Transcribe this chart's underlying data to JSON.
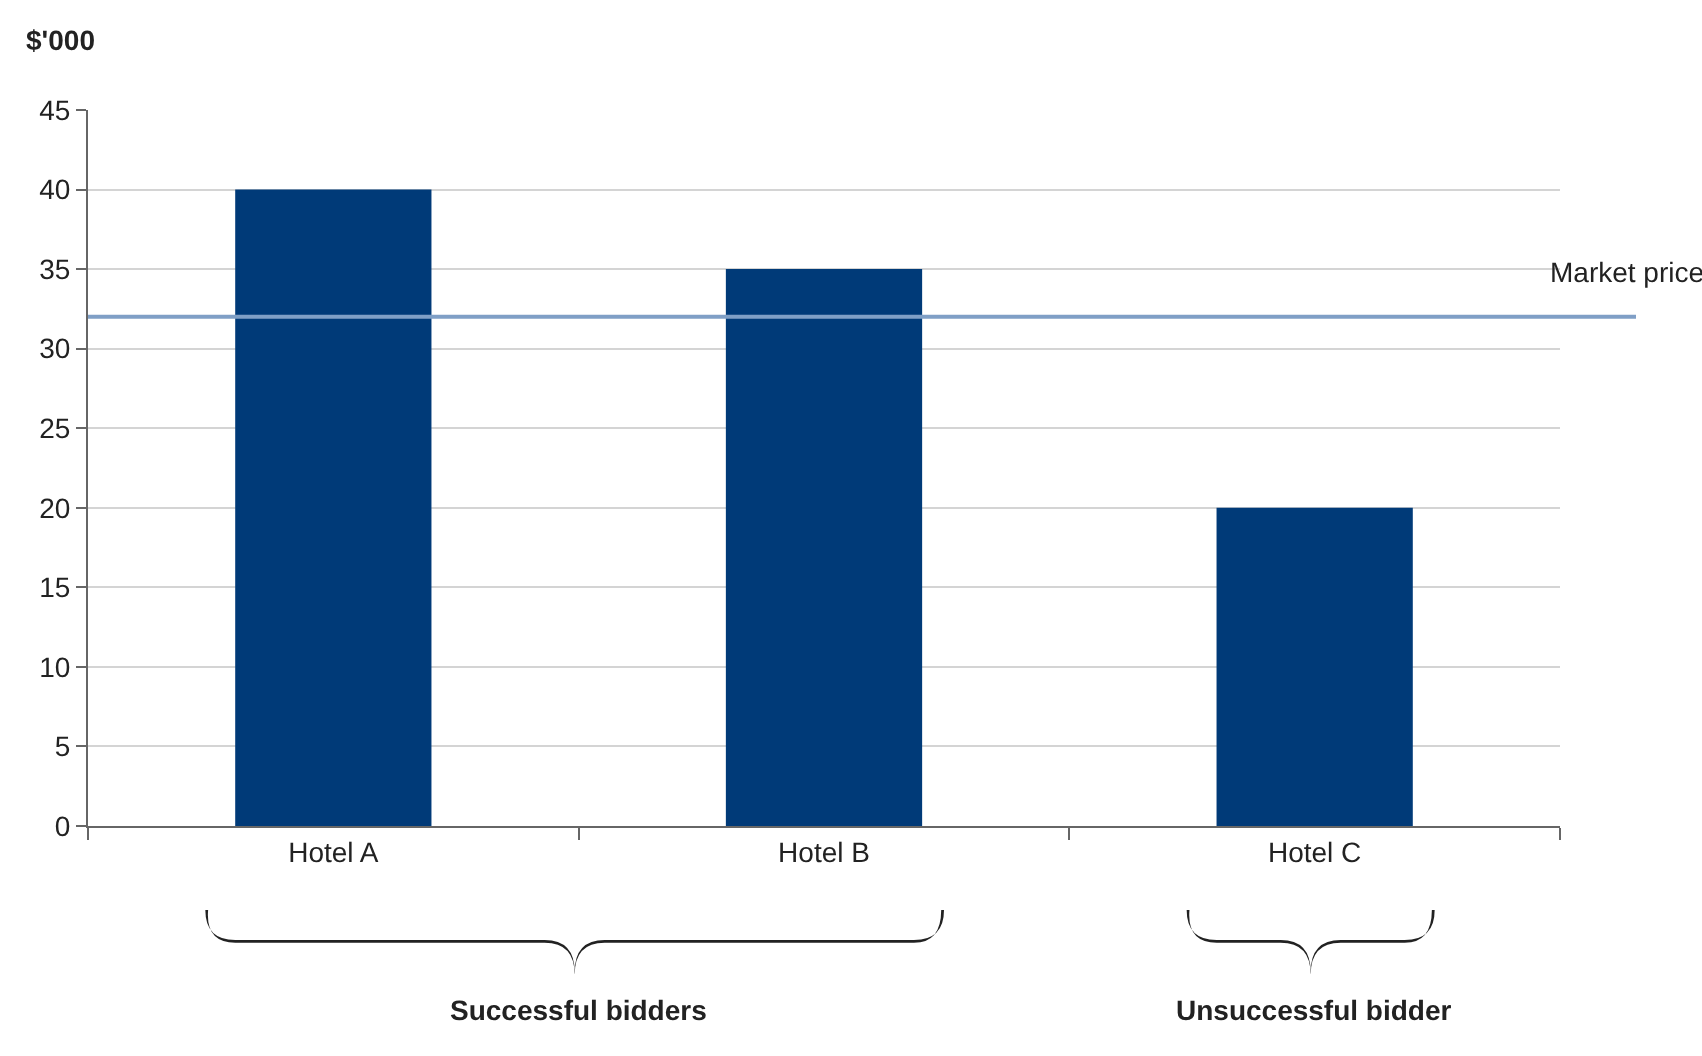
{
  "chart_data": {
    "type": "bar",
    "ylabel": "$'000",
    "categories": [
      "Hotel A",
      "Hotel B",
      "Hotel C"
    ],
    "values": [
      40,
      35,
      20
    ],
    "color": "#003a78",
    "ylim": [
      0,
      45
    ],
    "yticks": [
      0,
      5,
      10,
      15,
      20,
      25,
      30,
      35,
      40,
      45
    ],
    "grid": "y",
    "ref_lines": [
      {
        "axis": "y",
        "value": 32,
        "label": "Market price",
        "color": "#7f9fc6"
      }
    ],
    "annotations": [
      "Successful bidders",
      "Unsuccessful bidder"
    ]
  }
}
